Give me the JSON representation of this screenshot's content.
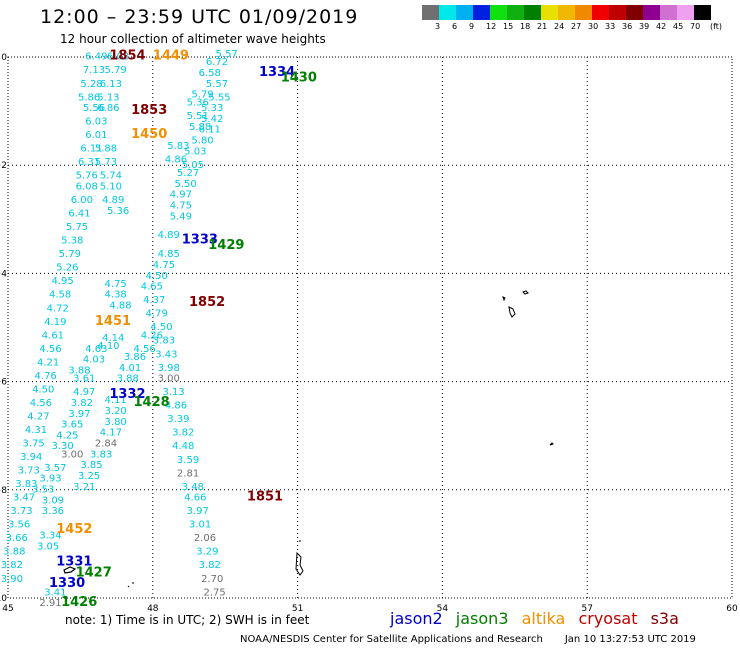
{
  "header": {
    "title": "12:00 – 23:59 UTC 01/09/2019",
    "subtitle": "12 hour collection of altimeter wave heights"
  },
  "legend": {
    "colors": [
      "#707070",
      "#00e8e8",
      "#00b0f0",
      "#0020e0",
      "#10e010",
      "#10b010",
      "#008000",
      "#e8e000",
      "#f0b800",
      "#f08800",
      "#f00000",
      "#c00000",
      "#800000",
      "#900090",
      "#d070d0",
      "#f0a0f0",
      "#000000"
    ],
    "labels": [
      "3",
      "6",
      "9",
      "12",
      "15",
      "18",
      "21",
      "24",
      "27",
      "30",
      "33",
      "36",
      "39",
      "42",
      "45",
      "70"
    ],
    "unit": "(ft)"
  },
  "axes": {
    "x_ticks": [
      "45",
      "48",
      "51",
      "54",
      "57",
      "60"
    ],
    "y_ticks": [
      "0",
      "−2",
      "−4",
      "−6",
      "−8",
      "−10"
    ]
  },
  "satellites": {
    "jason2": {
      "label": "jason2",
      "color": "#0000cc"
    },
    "jason3": {
      "label": "jason3",
      "color": "#008000"
    },
    "altika": {
      "label": "altika",
      "color": "#f09000"
    },
    "cryosat": {
      "label": "cryosat",
      "color": "#c00000"
    },
    "s3a": {
      "label": "s3a",
      "color": "#800000"
    }
  },
  "pass_labels": [
    {
      "text": "1854",
      "sat": "s3a",
      "lon": 47.1,
      "lat": -0.05
    },
    {
      "text": "1449",
      "sat": "altika",
      "lon": 48.0,
      "lat": -0.05
    },
    {
      "text": "1334",
      "sat": "jason2",
      "lon": 50.2,
      "lat": -0.35
    },
    {
      "text": "1430",
      "sat": "jason3",
      "lon": 50.65,
      "lat": -0.45
    },
    {
      "text": "1853",
      "sat": "s3a",
      "lon": 47.55,
      "lat": -1.05
    },
    {
      "text": "1450",
      "sat": "altika",
      "lon": 47.55,
      "lat": -1.5
    },
    {
      "text": "1333",
      "sat": "jason2",
      "lon": 48.6,
      "lat": -3.45
    },
    {
      "text": "1429",
      "sat": "jason3",
      "lon": 49.15,
      "lat": -3.55
    },
    {
      "text": "1852",
      "sat": "s3a",
      "lon": 48.75,
      "lat": -4.6
    },
    {
      "text": "1451",
      "sat": "altika",
      "lon": 46.8,
      "lat": -4.95
    },
    {
      "text": "1332",
      "sat": "jason2",
      "lon": 47.1,
      "lat": -6.3
    },
    {
      "text": "1428",
      "sat": "jason3",
      "lon": 47.6,
      "lat": -6.45
    },
    {
      "text": "1851",
      "sat": "s3a",
      "lon": 49.95,
      "lat": -8.2
    },
    {
      "text": "1452",
      "sat": "altika",
      "lon": 46.0,
      "lat": -8.8
    },
    {
      "text": "1331",
      "sat": "jason2",
      "lon": 46.0,
      "lat": -9.4
    },
    {
      "text": "1427",
      "sat": "jason3",
      "lon": 46.4,
      "lat": -9.6
    },
    {
      "text": "1330",
      "sat": "jason2",
      "lon": 45.85,
      "lat": -9.8
    },
    {
      "text": "1426",
      "sat": "jason3",
      "lon": 46.1,
      "lat": -10.15
    }
  ],
  "wave_heights": [
    {
      "v": "6.49",
      "lon": 46.6,
      "lat": -0.05,
      "c": "#00c8e0"
    },
    {
      "v": "6.03",
      "lon": 47.05,
      "lat": -0.05,
      "c": "#00c8e0"
    },
    {
      "v": "7.13",
      "lon": 46.55,
      "lat": -0.3,
      "c": "#00c8e0"
    },
    {
      "v": "5.79",
      "lon": 47.0,
      "lat": -0.3,
      "c": "#00c8e0"
    },
    {
      "v": "5.28",
      "lon": 46.5,
      "lat": -0.55,
      "c": "#00c8e0"
    },
    {
      "v": "6.13",
      "lon": 46.9,
      "lat": -0.55,
      "c": "#00c8e0"
    },
    {
      "v": "5.86",
      "lon": 46.45,
      "lat": -0.8,
      "c": "#00c8e0"
    },
    {
      "v": "5.13",
      "lon": 46.85,
      "lat": -0.8,
      "c": "#00c8e0"
    },
    {
      "v": "5.56",
      "lon": 46.55,
      "lat": -1.0,
      "c": "#00c8e0"
    },
    {
      "v": "6.86",
      "lon": 46.85,
      "lat": -1.0,
      "c": "#00c8e0"
    },
    {
      "v": "6.03",
      "lon": 46.6,
      "lat": -1.25,
      "c": "#00c8e0"
    },
    {
      "v": "6.01",
      "lon": 46.6,
      "lat": -1.5,
      "c": "#00c8e0"
    },
    {
      "v": "6.11",
      "lon": 46.5,
      "lat": -1.75,
      "c": "#00c8e0"
    },
    {
      "v": "5.88",
      "lon": 46.8,
      "lat": -1.75,
      "c": "#00c8e0"
    },
    {
      "v": "6.31",
      "lon": 46.45,
      "lat": -2.0,
      "c": "#00c8e0"
    },
    {
      "v": "5.73",
      "lon": 46.8,
      "lat": -2.0,
      "c": "#00c8e0"
    },
    {
      "v": "5.76",
      "lon": 46.4,
      "lat": -2.25,
      "c": "#00c8e0"
    },
    {
      "v": "5.74",
      "lon": 46.9,
      "lat": -2.25,
      "c": "#00c8e0"
    },
    {
      "v": "6.08",
      "lon": 46.4,
      "lat": -2.45,
      "c": "#00c8e0"
    },
    {
      "v": "5.10",
      "lon": 46.9,
      "lat": -2.45,
      "c": "#00c8e0"
    },
    {
      "v": "6.00",
      "lon": 46.3,
      "lat": -2.7,
      "c": "#00c8e0"
    },
    {
      "v": "4.89",
      "lon": 46.95,
      "lat": -2.7,
      "c": "#00c8e0"
    },
    {
      "v": "6.41",
      "lon": 46.25,
      "lat": -2.95,
      "c": "#00c8e0"
    },
    {
      "v": "5.36",
      "lon": 47.05,
      "lat": -2.9,
      "c": "#00c8e0"
    },
    {
      "v": "5.75",
      "lon": 46.2,
      "lat": -3.2,
      "c": "#00c8e0"
    },
    {
      "v": "5.38",
      "lon": 46.1,
      "lat": -3.45,
      "c": "#00c8e0"
    },
    {
      "v": "5.79",
      "lon": 46.05,
      "lat": -3.7,
      "c": "#00c8e0"
    },
    {
      "v": "5.26",
      "lon": 46.0,
      "lat": -3.95,
      "c": "#00c8e0"
    },
    {
      "v": "4.95",
      "lon": 45.9,
      "lat": -4.2,
      "c": "#00c8e0"
    },
    {
      "v": "4.58",
      "lon": 45.85,
      "lat": -4.45,
      "c": "#00c8e0"
    },
    {
      "v": "4.72",
      "lon": 45.8,
      "lat": -4.7,
      "c": "#00c8e0"
    },
    {
      "v": "4.19",
      "lon": 45.75,
      "lat": -4.95,
      "c": "#00c8e0"
    },
    {
      "v": "4.61",
      "lon": 45.7,
      "lat": -5.2,
      "c": "#00c8e0"
    },
    {
      "v": "4.56",
      "lon": 45.65,
      "lat": -5.45,
      "c": "#00c8e0"
    },
    {
      "v": "4.21",
      "lon": 45.6,
      "lat": -5.7,
      "c": "#00c8e0"
    },
    {
      "v": "4.76",
      "lon": 45.55,
      "lat": -5.95,
      "c": "#00c8e0"
    },
    {
      "v": "4.50",
      "lon": 45.5,
      "lat": -6.2,
      "c": "#00c8e0"
    },
    {
      "v": "4.56",
      "lon": 45.45,
      "lat": -6.45,
      "c": "#00c8e0"
    },
    {
      "v": "4.27",
      "lon": 45.4,
      "lat": -6.7,
      "c": "#00c8e0"
    },
    {
      "v": "4.31",
      "lon": 45.35,
      "lat": -6.95,
      "c": "#00c8e0"
    },
    {
      "v": "3.75",
      "lon": 45.3,
      "lat": -7.2,
      "c": "#00c8e0"
    },
    {
      "v": "3.94",
      "lon": 45.25,
      "lat": -7.45,
      "c": "#00c8e0"
    },
    {
      "v": "3.73",
      "lon": 45.2,
      "lat": -7.7,
      "c": "#00c8e0"
    },
    {
      "v": "3.83",
      "lon": 45.15,
      "lat": -7.95,
      "c": "#00c8e0"
    },
    {
      "v": "3.47",
      "lon": 45.1,
      "lat": -8.2,
      "c": "#00c8e0"
    },
    {
      "v": "3.73",
      "lon": 45.05,
      "lat": -8.45,
      "c": "#00c8e0"
    },
    {
      "v": "3.56",
      "lon": 45.0,
      "lat": -8.7,
      "c": "#00c8e0"
    },
    {
      "v": "3.66",
      "lon": 44.95,
      "lat": -8.95,
      "c": "#00c8e0"
    },
    {
      "v": "3.88",
      "lon": 44.9,
      "lat": -9.2,
      "c": "#00c8e0"
    },
    {
      "v": "3.82",
      "lon": 44.85,
      "lat": -9.45,
      "c": "#00c8e0"
    },
    {
      "v": "3.90",
      "lon": 44.85,
      "lat": -9.7,
      "c": "#00c8e0"
    },
    {
      "v": "4.75",
      "lon": 47.0,
      "lat": -4.25,
      "c": "#00c8e0"
    },
    {
      "v": "4.38",
      "lon": 47.0,
      "lat": -4.45,
      "c": "#00c8e0"
    },
    {
      "v": "4.88",
      "lon": 47.1,
      "lat": -4.65,
      "c": "#00c8e0"
    },
    {
      "v": "4.14",
      "lon": 46.95,
      "lat": -5.25,
      "c": "#00c8e0"
    },
    {
      "v": "4.10",
      "lon": 46.85,
      "lat": -5.4,
      "c": "#00c8e0"
    },
    {
      "v": "4.63",
      "lon": 46.6,
      "lat": -5.45,
      "c": "#00c8e0"
    },
    {
      "v": "4.03",
      "lon": 46.55,
      "lat": -5.65,
      "c": "#00c8e0"
    },
    {
      "v": "3.88",
      "lon": 46.25,
      "lat": -5.85,
      "c": "#00c8e0"
    },
    {
      "v": "3.61",
      "lon": 46.35,
      "lat": -6.0,
      "c": "#00c8e0"
    },
    {
      "v": "4.97",
      "lon": 46.35,
      "lat": -6.25,
      "c": "#00c8e0"
    },
    {
      "v": "3.82",
      "lon": 46.3,
      "lat": -6.45,
      "c": "#00c8e0"
    },
    {
      "v": "3.97",
      "lon": 46.25,
      "lat": -6.65,
      "c": "#00c8e0"
    },
    {
      "v": "3.65",
      "lon": 46.1,
      "lat": -6.85,
      "c": "#00c8e0"
    },
    {
      "v": "4.25",
      "lon": 46.0,
      "lat": -7.05,
      "c": "#00c8e0"
    },
    {
      "v": "3.30",
      "lon": 45.9,
      "lat": -7.25,
      "c": "#00c8e0"
    },
    {
      "v": "3.57",
      "lon": 45.75,
      "lat": -7.65,
      "c": "#00c8e0"
    },
    {
      "v": "3.93",
      "lon": 45.65,
      "lat": -7.85,
      "c": "#00c8e0"
    },
    {
      "v": "3.53",
      "lon": 45.5,
      "lat": -8.05,
      "c": "#00c8e0"
    },
    {
      "v": "3.09",
      "lon": 45.7,
      "lat": -8.25,
      "c": "#00c8e0"
    },
    {
      "v": "3.36",
      "lon": 45.7,
      "lat": -8.45,
      "c": "#00c8e0"
    },
    {
      "v": "3.34",
      "lon": 45.65,
      "lat": -8.9,
      "c": "#00c8e0"
    },
    {
      "v": "3.05",
      "lon": 45.6,
      "lat": -9.1,
      "c": "#00c8e0"
    },
    {
      "v": "3.41",
      "lon": 45.75,
      "lat": -9.95,
      "c": "#00c8e0"
    },
    {
      "v": "5.57",
      "lon": 49.3,
      "lat": -0.0,
      "c": "#00c8e0"
    },
    {
      "v": "6.72",
      "lon": 49.1,
      "lat": -0.15,
      "c": "#00c8e0"
    },
    {
      "v": "6.58",
      "lon": 48.95,
      "lat": -0.35,
      "c": "#00c8e0"
    },
    {
      "v": "5.57",
      "lon": 49.1,
      "lat": -0.55,
      "c": "#00c8e0"
    },
    {
      "v": "5.79",
      "lon": 48.8,
      "lat": -0.75,
      "c": "#00c8e0"
    },
    {
      "v": "5.55",
      "lon": 49.15,
      "lat": -0.8,
      "c": "#00c8e0"
    },
    {
      "v": "5.36",
      "lon": 48.7,
      "lat": -0.9,
      "c": "#00c8e0"
    },
    {
      "v": "5.33",
      "lon": 49.0,
      "lat": -1.0,
      "c": "#00c8e0"
    },
    {
      "v": "5.51",
      "lon": 48.7,
      "lat": -1.15,
      "c": "#00c8e0"
    },
    {
      "v": "5.42",
      "lon": 49.0,
      "lat": -1.2,
      "c": "#00c8e0"
    },
    {
      "v": "5.88",
      "lon": 48.75,
      "lat": -1.35,
      "c": "#00c8e0"
    },
    {
      "v": "6.11",
      "lon": 48.95,
      "lat": -1.4,
      "c": "#00c8e0"
    },
    {
      "v": "5.80",
      "lon": 48.8,
      "lat": -1.6,
      "c": "#00c8e0"
    },
    {
      "v": "5.83",
      "lon": 48.3,
      "lat": -1.7,
      "c": "#00c8e0"
    },
    {
      "v": "5.03",
      "lon": 48.65,
      "lat": -1.8,
      "c": "#00c8e0"
    },
    {
      "v": "4.86",
      "lon": 48.25,
      "lat": -1.95,
      "c": "#00c8e0"
    },
    {
      "v": "5.05",
      "lon": 48.6,
      "lat": -2.05,
      "c": "#00c8e0"
    },
    {
      "v": "5.27",
      "lon": 48.5,
      "lat": -2.2,
      "c": "#00c8e0"
    },
    {
      "v": "5.50",
      "lon": 48.45,
      "lat": -2.4,
      "c": "#00c8e0"
    },
    {
      "v": "4.97",
      "lon": 48.35,
      "lat": -2.6,
      "c": "#00c8e0"
    },
    {
      "v": "4.75",
      "lon": 48.35,
      "lat": -2.8,
      "c": "#00c8e0"
    },
    {
      "v": "5.49",
      "lon": 48.35,
      "lat": -3.0,
      "c": "#00c8e0"
    },
    {
      "v": "4.89",
      "lon": 48.1,
      "lat": -3.35,
      "c": "#00c8e0"
    },
    {
      "v": "4.85",
      "lon": 48.1,
      "lat": -3.7,
      "c": "#00c8e0"
    },
    {
      "v": "4.75",
      "lon": 48.0,
      "lat": -3.9,
      "c": "#00c8e0"
    },
    {
      "v": "4.50",
      "lon": 47.85,
      "lat": -4.1,
      "c": "#00c8e0"
    },
    {
      "v": "4.65",
      "lon": 47.75,
      "lat": -4.3,
      "c": "#00c8e0"
    },
    {
      "v": "4.37",
      "lon": 47.8,
      "lat": -4.55,
      "c": "#00c8e0"
    },
    {
      "v": "4.79",
      "lon": 47.85,
      "lat": -4.8,
      "c": "#00c8e0"
    },
    {
      "v": "4.50",
      "lon": 47.95,
      "lat": -5.05,
      "c": "#00c8e0"
    },
    {
      "v": "4.26",
      "lon": 47.75,
      "lat": -5.2,
      "c": "#00c8e0"
    },
    {
      "v": "3.83",
      "lon": 48.0,
      "lat": -5.3,
      "c": "#00c8e0"
    },
    {
      "v": "4.56",
      "lon": 47.6,
      "lat": -5.45,
      "c": "#00c8e0"
    },
    {
      "v": "3.43",
      "lon": 48.05,
      "lat": -5.55,
      "c": "#00c8e0"
    },
    {
      "v": "3.86",
      "lon": 47.4,
      "lat": -5.6,
      "c": "#00c8e0"
    },
    {
      "v": "3.98",
      "lon": 48.1,
      "lat": -5.8,
      "c": "#00c8e0"
    },
    {
      "v": "4.01",
      "lon": 47.3,
      "lat": -5.8,
      "c": "#00c8e0"
    },
    {
      "v": "3.88",
      "lon": 47.25,
      "lat": -6.0,
      "c": "#00c8e0"
    },
    {
      "v": "3.00",
      "lon": 48.1,
      "lat": -6.0,
      "c": "#707070"
    },
    {
      "v": "4.11",
      "lon": 47.0,
      "lat": -6.4,
      "c": "#00c8e0"
    },
    {
      "v": "3.20",
      "lon": 47.0,
      "lat": -6.6,
      "c": "#00c8e0"
    },
    {
      "v": "3.80",
      "lon": 47.0,
      "lat": -6.8,
      "c": "#00c8e0"
    },
    {
      "v": "4.17",
      "lon": 46.9,
      "lat": -7.0,
      "c": "#00c8e0"
    },
    {
      "v": "2.84",
      "lon": 46.8,
      "lat": -7.2,
      "c": "#707070"
    },
    {
      "v": "3.83",
      "lon": 46.7,
      "lat": -7.4,
      "c": "#00c8e0"
    },
    {
      "v": "3.85",
      "lon": 46.5,
      "lat": -7.6,
      "c": "#00c8e0"
    },
    {
      "v": "3.25",
      "lon": 46.45,
      "lat": -7.8,
      "c": "#00c8e0"
    },
    {
      "v": "3.21",
      "lon": 46.35,
      "lat": -8.0,
      "c": "#00c8e0"
    },
    {
      "v": "3.00",
      "lon": 46.1,
      "lat": -7.4,
      "c": "#707070"
    },
    {
      "v": "3.13",
      "lon": 48.2,
      "lat": -6.25,
      "c": "#00c8e0"
    },
    {
      "v": "4.86",
      "lon": 48.25,
      "lat": -6.5,
      "c": "#00c8e0"
    },
    {
      "v": "3.39",
      "lon": 48.3,
      "lat": -6.75,
      "c": "#00c8e0"
    },
    {
      "v": "3.82",
      "lon": 48.4,
      "lat": -7.0,
      "c": "#00c8e0"
    },
    {
      "v": "4.48",
      "lon": 48.4,
      "lat": -7.25,
      "c": "#00c8e0"
    },
    {
      "v": "3.59",
      "lon": 48.5,
      "lat": -7.5,
      "c": "#00c8e0"
    },
    {
      "v": "2.81",
      "lon": 48.5,
      "lat": -7.75,
      "c": "#707070"
    },
    {
      "v": "3.48",
      "lon": 48.6,
      "lat": -8.0,
      "c": "#00c8e0"
    },
    {
      "v": "4.66",
      "lon": 48.65,
      "lat": -8.2,
      "c": "#00c8e0"
    },
    {
      "v": "3.97",
      "lon": 48.7,
      "lat": -8.45,
      "c": "#00c8e0"
    },
    {
      "v": "3.01",
      "lon": 48.75,
      "lat": -8.7,
      "c": "#00c8e0"
    },
    {
      "v": "2.06",
      "lon": 48.85,
      "lat": -8.95,
      "c": "#707070"
    },
    {
      "v": "3.29",
      "lon": 48.9,
      "lat": -9.2,
      "c": "#00c8e0"
    },
    {
      "v": "3.82",
      "lon": 48.95,
      "lat": -9.45,
      "c": "#00c8e0"
    },
    {
      "v": "2.70",
      "lon": 49.0,
      "lat": -9.7,
      "c": "#707070"
    },
    {
      "v": "2.75",
      "lon": 49.05,
      "lat": -9.95,
      "c": "#707070"
    },
    {
      "v": "2.91",
      "lon": 45.65,
      "lat": -10.15,
      "c": "#707070"
    }
  ],
  "footer": {
    "note": "note:  1) Time is in UTC;  2) SWH is in feet",
    "credit": "NOAA/NESDIS Center for Satellite Applications and Research",
    "timestamp": "Jan 10 13:27:53 UTC 2019"
  }
}
